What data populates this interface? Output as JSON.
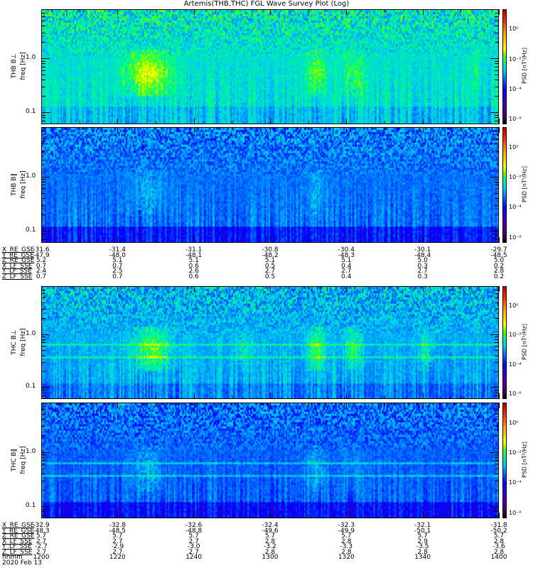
{
  "chart_data": {
    "type": "heatmap",
    "title": "Artemis(THB,THC) FGL Wave Survey Plot (Log)",
    "yscale": "log",
    "ylim": [
      0.06,
      8.1
    ],
    "yticks": [
      "1.0",
      "0.1"
    ],
    "ytick_values": [
      1.0,
      0.1
    ],
    "yunit": "freq [Hz]",
    "colorbar": {
      "label": "PSD [nT²/Hz]",
      "scale": "log",
      "range_log10": [
        -6.3,
        1.4
      ],
      "ticks": [
        "10⁰",
        "10⁻²",
        "10⁻⁴",
        "10⁻⁶"
      ],
      "tick_values_log10": [
        0,
        -2,
        -4,
        -6
      ],
      "colormap": "rainbow"
    },
    "panels": [
      {
        "ylabel": "THB B⊥",
        "features": "broadband green background; yellow enhancement near 1225-1235 at 0.3-0.8 Hz; enhancements near 1310 and 1320"
      },
      {
        "ylabel": "THB B∥",
        "features": "mostly blue/cyan with dark stripes below 0.1 Hz"
      },
      {
        "ylabel": "THC B⊥",
        "features": "yellow-green enhancements near 1230, 1310, 1320, 1345 at 0.3-0.8 Hz"
      },
      {
        "ylabel": "THC B∥",
        "features": "mostly blue with dark stripes at low frequency"
      }
    ],
    "ephemeris": [
      {
        "labels": [
          "X_RE_GSE",
          "Y_RE_GSE",
          "Z_RE_GSE",
          "X_LF_SSE",
          "Y_LF_SSE",
          "Z_LF_SSE"
        ],
        "rows": [
          [
            "-31.6",
            "-31.4",
            "-31.1",
            "-30.8",
            "-30.4",
            "-30.1",
            "-29.7"
          ],
          [
            "-47.9",
            "-48.0",
            "-48.1",
            "-48.2",
            "-48.3",
            "-48.4",
            "-48.5"
          ],
          [
            "5.2",
            "5.1",
            "5.1",
            "5.1",
            "5.1",
            "5.0",
            "5.0"
          ],
          [
            "0.7",
            "0.7",
            "0.6",
            "0.5",
            "0.4",
            "0.3",
            "0.2"
          ],
          [
            "2.4",
            "2.5",
            "2.6",
            "2.7",
            "2.7",
            "2.7",
            "2.8"
          ],
          [
            "0.7",
            "0.7",
            "0.6",
            "0.5",
            "0.4",
            "0.3",
            "0.2"
          ]
        ]
      },
      {
        "labels": [
          "X_RE_GSE",
          "Y_RE_GSE",
          "Z_RE_GSE",
          "X_LF_SSE",
          "Y_LF_SSE",
          "Z_LF_SSE",
          "hhmm"
        ],
        "rows": [
          [
            "-32.9",
            "-32.8",
            "-32.6",
            "-32.4",
            "-32.3",
            "-32.1",
            "-31.8"
          ],
          [
            "-48.3",
            "-48.5",
            "-48.8",
            "-49.6",
            "-49.9",
            "-50.1",
            "-50.2"
          ],
          [
            "5.7",
            "5.7",
            "5.7",
            "5.7",
            "5.7",
            "5.7",
            "5.7"
          ],
          [
            "2.7",
            "2.7",
            "2.7",
            "2.8",
            "2.8",
            "2.9",
            "2.8"
          ],
          [
            "-2.7",
            "-2.9",
            "-3.0",
            "-3.2",
            "-3.3",
            "-3.5",
            "-3.6"
          ],
          [
            "2.7",
            "2.7",
            "2.7",
            "2.8",
            "2.8",
            "2.8",
            "2.8"
          ],
          [
            "1200",
            "1220",
            "1240",
            "1300",
            "1320",
            "1340",
            "1400"
          ]
        ]
      }
    ],
    "xlim": [
      "1200",
      "1400"
    ],
    "date": "2020 Feb 13"
  }
}
